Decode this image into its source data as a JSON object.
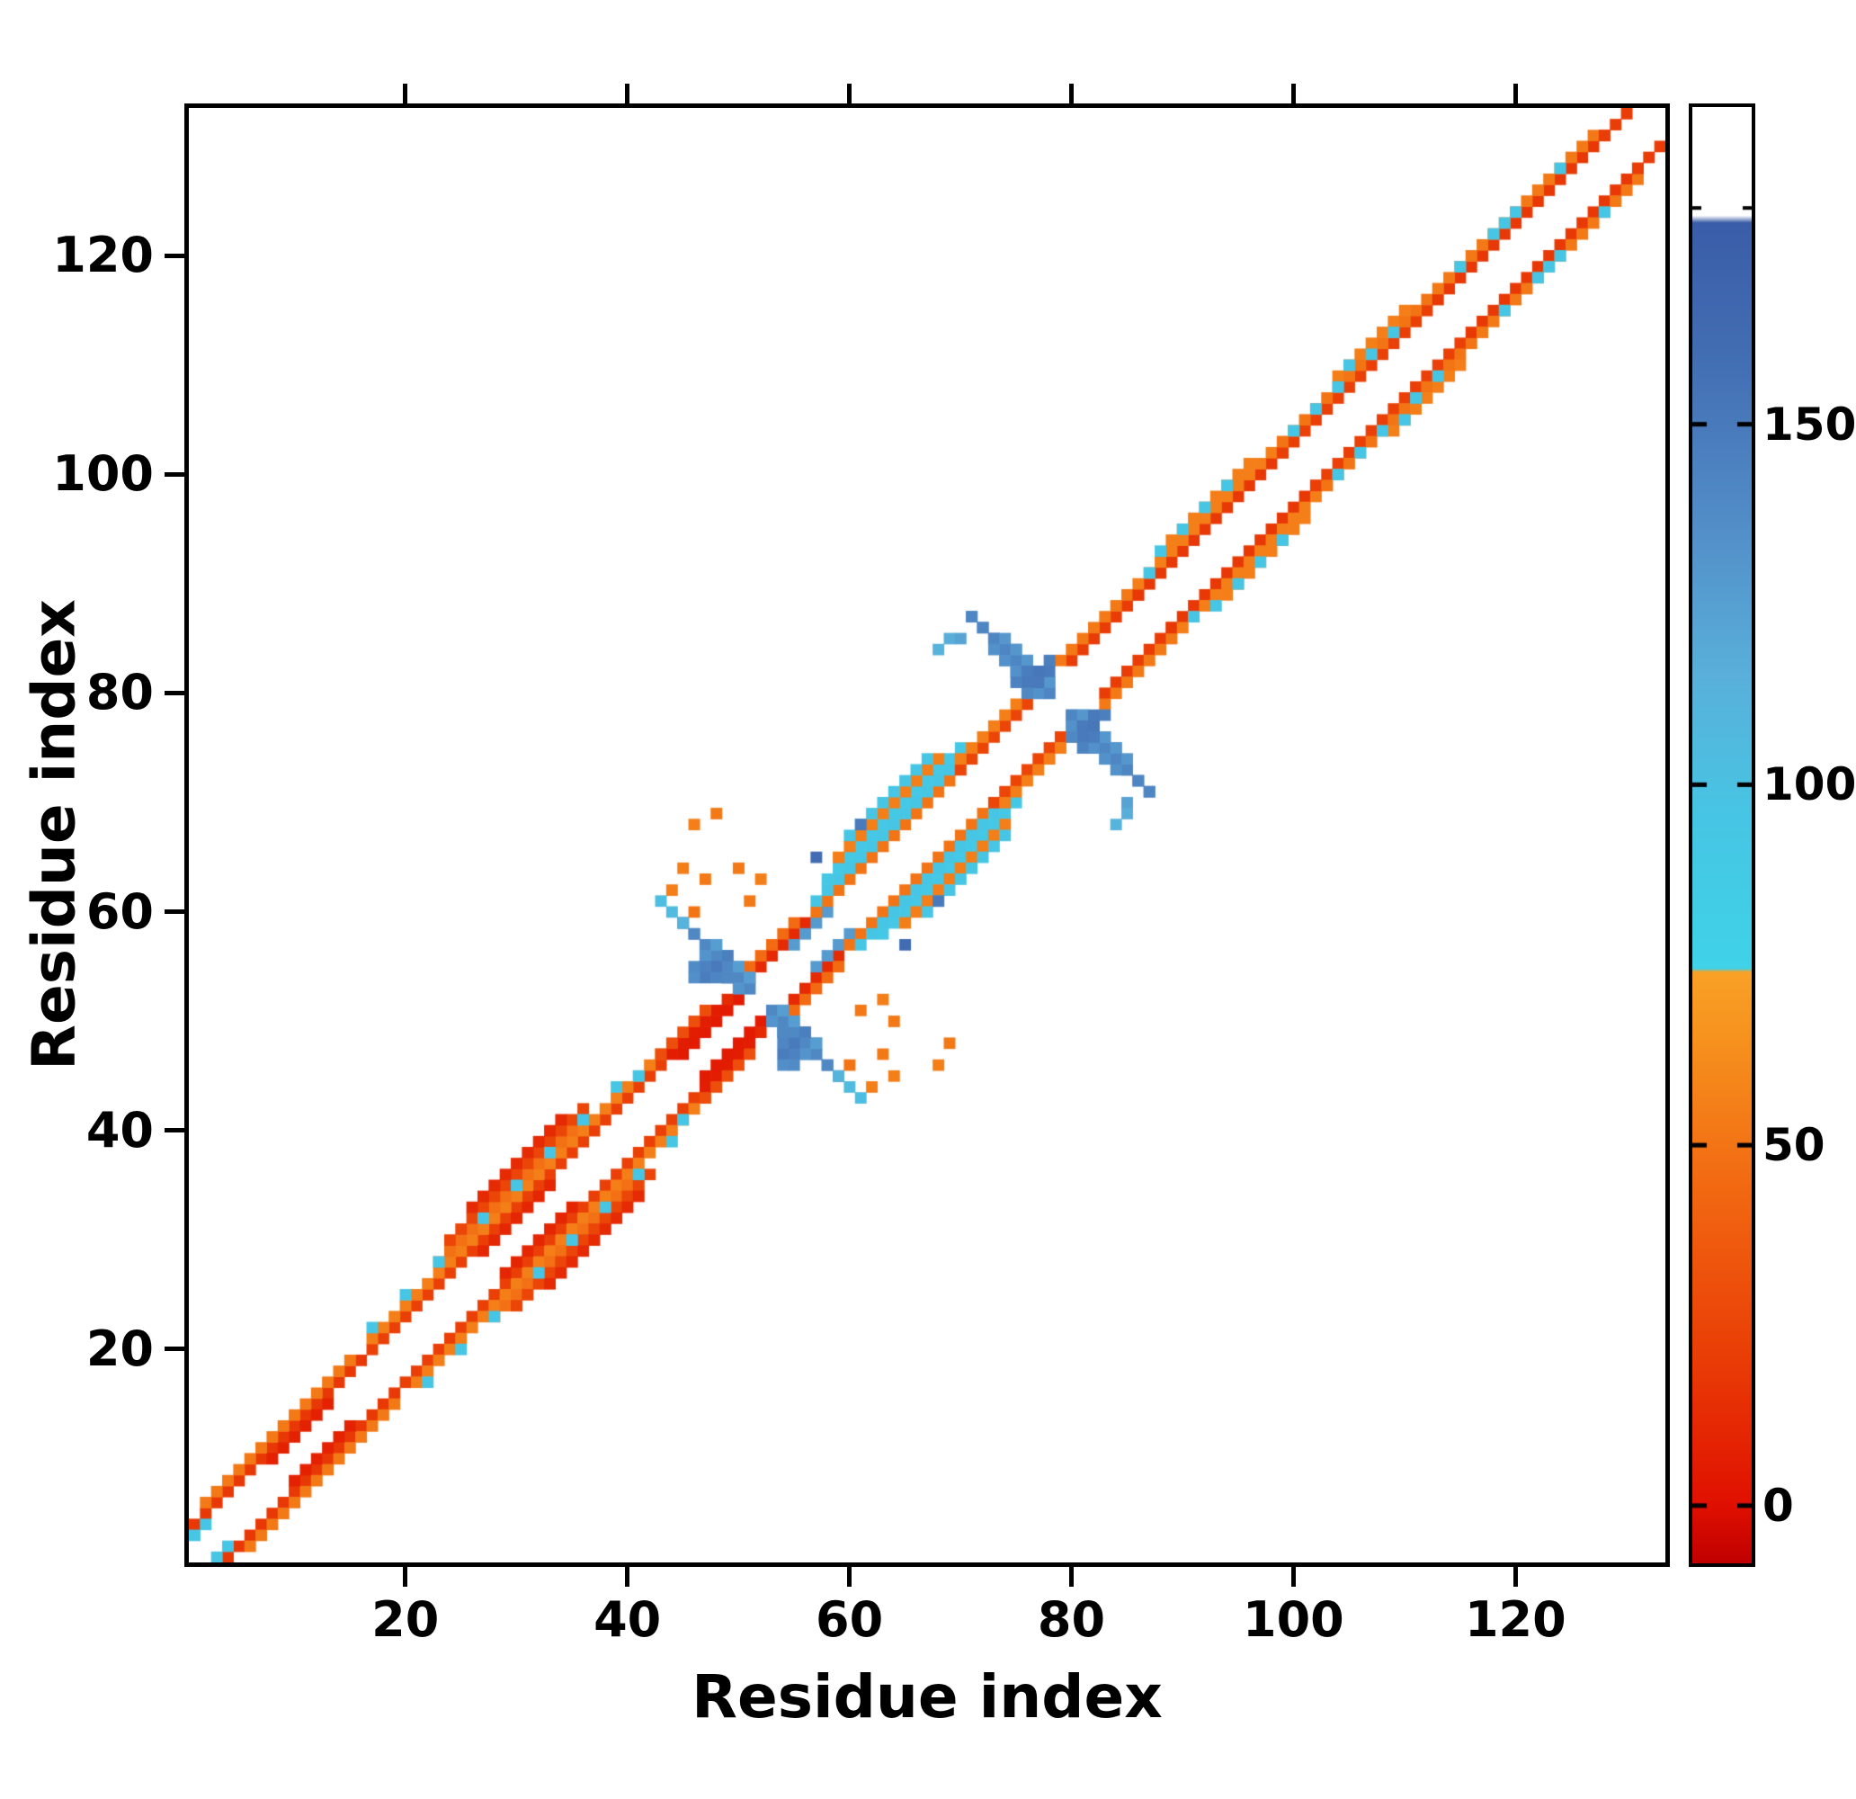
{
  "page": {
    "background": "#ffffff"
  },
  "chart_data": {
    "type": "heatmap",
    "title": "",
    "xlabel": "Residue index",
    "ylabel": "Residue index",
    "x_range": [
      1,
      133
    ],
    "y_range": [
      1,
      133
    ],
    "x_ticks": [
      20,
      40,
      60,
      80,
      100,
      120
    ],
    "y_ticks": [
      20,
      40,
      60,
      80,
      100,
      120
    ],
    "n_residues": 133,
    "symmetric": true,
    "grid": false,
    "colorbar": {
      "ticks": [
        0,
        50,
        100,
        150
      ],
      "minor_ticks": [
        180
      ],
      "vmin": -8,
      "vmax": 194,
      "position": "right"
    },
    "colormap_stops": [
      [
        -8,
        "#c00000"
      ],
      [
        0,
        "#e01000"
      ],
      [
        20,
        "#e93c06"
      ],
      [
        45,
        "#f26a12"
      ],
      [
        65,
        "#f6921e"
      ],
      [
        74,
        "#f9a126"
      ],
      [
        74.5,
        "#3fd2e8"
      ],
      [
        95,
        "#46c6e4"
      ],
      [
        115,
        "#59b0da"
      ],
      [
        135,
        "#538fc9"
      ],
      [
        158,
        "#436fb4"
      ],
      [
        178,
        "#3a5da8"
      ],
      [
        179,
        "#ffffff"
      ],
      [
        194,
        "#ffffff"
      ]
    ],
    "band_segments": [
      {
        "i0": 1,
        "i1": 16,
        "off": 3,
        "v": 18
      },
      {
        "i0": 2,
        "i1": 15,
        "off": 4,
        "v": 52
      },
      {
        "i0": 8,
        "i1": 13,
        "off": 2,
        "v": 8
      },
      {
        "i0": 17,
        "i1": 43,
        "off": 3,
        "v": 22
      },
      {
        "i0": 17,
        "i1": 43,
        "off": 4,
        "v": 55
      },
      {
        "i0": 23,
        "i1": 35,
        "off": 5,
        "v": 48
      },
      {
        "i0": 24,
        "i1": 36,
        "off": 6,
        "v": 25
      },
      {
        "i0": 26,
        "i1": 34,
        "off": 7,
        "v": 12
      },
      {
        "i0": 27,
        "i1": 33,
        "off": 2,
        "v": 10
      },
      {
        "i0": 44,
        "i1": 48,
        "off": 3,
        "v": 6
      },
      {
        "i0": 43,
        "i1": 47,
        "off": 4,
        "v": 30
      },
      {
        "i0": 45,
        "i1": 50,
        "off": 2,
        "v": 5
      },
      {
        "i0": 49,
        "i1": 56,
        "off": 3,
        "v": 12
      },
      {
        "i0": 50,
        "i1": 55,
        "off": 4,
        "v": 45
      },
      {
        "i0": 55,
        "i1": 58,
        "off": 2,
        "v": 128
      },
      {
        "i0": 57,
        "i1": 69,
        "off": 3,
        "v": 50
      },
      {
        "i0": 57,
        "i1": 70,
        "off": 4,
        "v": 95
      },
      {
        "i0": 58,
        "i1": 70,
        "off": 5,
        "v": 92
      },
      {
        "i0": 59,
        "i1": 68,
        "off": 6,
        "v": 55
      },
      {
        "i0": 60,
        "i1": 67,
        "off": 7,
        "v": 95
      },
      {
        "i0": 70,
        "i1": 76,
        "off": 3,
        "v": 25
      },
      {
        "i0": 70,
        "i1": 76,
        "off": 4,
        "v": 55
      },
      {
        "i0": 80,
        "i1": 86,
        "off": 3,
        "v": 20
      },
      {
        "i0": 79,
        "i1": 85,
        "off": 4,
        "v": 52
      },
      {
        "i0": 86,
        "i1": 99,
        "off": 3,
        "v": 18
      },
      {
        "i0": 86,
        "i1": 99,
        "off": 4,
        "v": 55
      },
      {
        "i0": 89,
        "i1": 96,
        "off": 5,
        "v": 55
      },
      {
        "i0": 99,
        "i1": 112,
        "off": 3,
        "v": 22
      },
      {
        "i0": 99,
        "i1": 112,
        "off": 4,
        "v": 50
      },
      {
        "i0": 104,
        "i1": 110,
        "off": 5,
        "v": 55
      },
      {
        "i0": 113,
        "i1": 128,
        "off": 3,
        "v": 18
      },
      {
        "i0": 113,
        "i1": 127,
        "off": 4,
        "v": 52
      },
      {
        "i0": 128,
        "i1": 130,
        "off": 3,
        "v": 20
      }
    ],
    "anti_segments": [
      {
        "c": 104,
        "i0": 45,
        "i1": 59,
        "v": 140
      },
      {
        "c": 103,
        "i0": 47,
        "i1": 56,
        "v": 132
      },
      {
        "c": 105,
        "i0": 48,
        "i1": 57,
        "v": 126
      },
      {
        "c": 158,
        "i0": 71,
        "i1": 87,
        "v": 142
      },
      {
        "c": 157,
        "i0": 74,
        "i1": 84,
        "v": 134
      },
      {
        "c": 159,
        "i0": 74,
        "i1": 84,
        "v": 130
      }
    ],
    "cells": [
      [
        1,
        3,
        95
      ],
      [
        2,
        4,
        95
      ],
      [
        17,
        22,
        95
      ],
      [
        20,
        25,
        95
      ],
      [
        23,
        28,
        95
      ],
      [
        27,
        32,
        95
      ],
      [
        30,
        35,
        95
      ],
      [
        33,
        38,
        95
      ],
      [
        36,
        41,
        95
      ],
      [
        39,
        44,
        95
      ],
      [
        41,
        45,
        95
      ],
      [
        87,
        91,
        95
      ],
      [
        88,
        93,
        95
      ],
      [
        90,
        95,
        95
      ],
      [
        92,
        97,
        95
      ],
      [
        94,
        99,
        95
      ],
      [
        100,
        104,
        95
      ],
      [
        102,
        106,
        95
      ],
      [
        104,
        108,
        95
      ],
      [
        105,
        110,
        95
      ],
      [
        107,
        111,
        95
      ],
      [
        109,
        113,
        95
      ],
      [
        115,
        119,
        95
      ],
      [
        118,
        122,
        95
      ],
      [
        119,
        123,
        95
      ],
      [
        120,
        124,
        95
      ],
      [
        124,
        128,
        95
      ],
      [
        47,
        54,
        148
      ],
      [
        48,
        55,
        150
      ],
      [
        49,
        56,
        146
      ],
      [
        47,
        55,
        144
      ],
      [
        48,
        54,
        142
      ],
      [
        46,
        55,
        138
      ],
      [
        49,
        54,
        140
      ],
      [
        46,
        54,
        136
      ],
      [
        44,
        60,
        105
      ],
      [
        43,
        61,
        102
      ],
      [
        45,
        59,
        112
      ],
      [
        76,
        81,
        150
      ],
      [
        77,
        82,
        152
      ],
      [
        76,
        82,
        148
      ],
      [
        78,
        83,
        146
      ],
      [
        75,
        81,
        144
      ],
      [
        77,
        81,
        150
      ],
      [
        76,
        80,
        140
      ],
      [
        78,
        82,
        150
      ],
      [
        84,
        68,
        112
      ],
      [
        85,
        69,
        116
      ],
      [
        85,
        70,
        122
      ],
      [
        45,
        64,
        55
      ],
      [
        47,
        63,
        52
      ],
      [
        44,
        62,
        55
      ],
      [
        46,
        60,
        50
      ],
      [
        50,
        64,
        52
      ],
      [
        51,
        61,
        52
      ],
      [
        52,
        63,
        55
      ],
      [
        46,
        68,
        55
      ],
      [
        48,
        69,
        52
      ],
      [
        57,
        65,
        162
      ],
      [
        61,
        68,
        150
      ]
    ]
  }
}
